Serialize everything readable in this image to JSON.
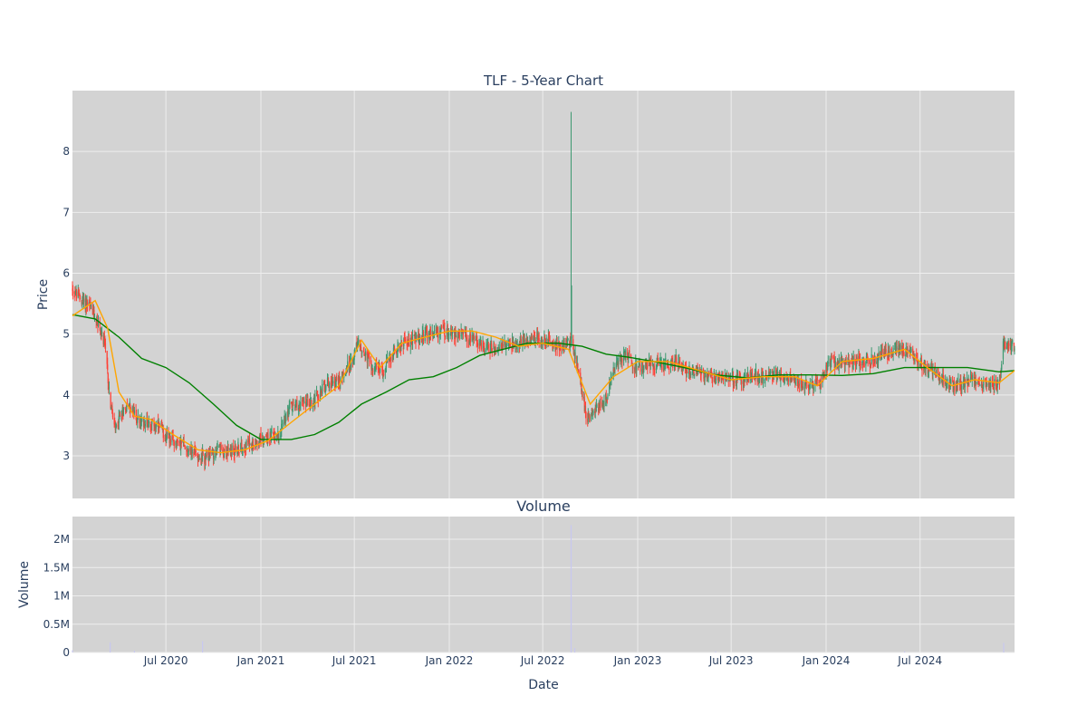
{
  "colors": {
    "panel_bg": "#d3d3d3",
    "grid": "#eeeeee",
    "increasing": "#3d9970",
    "decreasing": "#ff4136",
    "ma_short": "#ffa500",
    "ma_long": "#008000",
    "volume": "#c8c8f0",
    "text": "#2a3f5f"
  },
  "chart_data": {
    "type": "candlestick",
    "title": "TLF - 5-Year Chart",
    "price_panel": {
      "ylabel": "Price",
      "ylim": [
        2.3,
        9.0
      ],
      "yticks": [
        3,
        4,
        5,
        6,
        7,
        8
      ],
      "ytick_labels": [
        "3",
        "4",
        "5",
        "6",
        "7",
        "8"
      ],
      "grid": true
    },
    "volume_panel": {
      "title": "Volume",
      "ylabel": "Volume",
      "ylim": [
        0,
        2400000
      ],
      "yticks": [
        0,
        500000,
        1000000,
        1500000,
        2000000
      ],
      "ytick_labels": [
        "0",
        "0.5M",
        "1M",
        "1.5M",
        "2M"
      ],
      "grid": true
    },
    "xlabel": "Date",
    "x_range": [
      "2020-01-02",
      "2024-12-31"
    ],
    "xticks": [
      "2020-07-01",
      "2021-01-01",
      "2021-07-01",
      "2022-01-01",
      "2022-07-01",
      "2023-01-01",
      "2023-07-01",
      "2024-01-01",
      "2024-07-01"
    ],
    "xtick_labels": [
      "Jul 2020",
      "Jan 2021",
      "Jul 2021",
      "Jan 2022",
      "Jul 2022",
      "Jan 2023",
      "Jul 2023",
      "Jan 2024",
      "Jul 2024"
    ],
    "close_approx": [
      [
        "2020-01-02",
        5.75
      ],
      [
        "2020-01-20",
        5.55
      ],
      [
        "2020-02-05",
        5.45
      ],
      [
        "2020-02-20",
        5.2
      ],
      [
        "2020-03-05",
        4.8
      ],
      [
        "2020-03-15",
        3.9
      ],
      [
        "2020-03-25",
        3.4
      ],
      [
        "2020-04-05",
        3.7
      ],
      [
        "2020-04-20",
        3.85
      ],
      [
        "2020-05-10",
        3.55
      ],
      [
        "2020-06-01",
        3.55
      ],
      [
        "2020-06-20",
        3.45
      ],
      [
        "2020-07-10",
        3.25
      ],
      [
        "2020-08-01",
        3.2
      ],
      [
        "2020-08-25",
        3.05
      ],
      [
        "2020-09-15",
        2.95
      ],
      [
        "2020-10-10",
        3.1
      ],
      [
        "2020-11-01",
        3.05
      ],
      [
        "2020-11-25",
        3.15
      ],
      [
        "2020-12-20",
        3.25
      ],
      [
        "2021-01-10",
        3.3
      ],
      [
        "2021-02-05",
        3.35
      ],
      [
        "2021-02-25",
        3.8
      ],
      [
        "2021-03-20",
        3.85
      ],
      [
        "2021-04-15",
        3.9
      ],
      [
        "2021-05-10",
        4.2
      ],
      [
        "2021-06-05",
        4.25
      ],
      [
        "2021-06-25",
        4.55
      ],
      [
        "2021-07-10",
        4.85
      ],
      [
        "2021-08-01",
        4.5
      ],
      [
        "2021-08-25",
        4.4
      ],
      [
        "2021-09-15",
        4.7
      ],
      [
        "2021-10-10",
        4.9
      ],
      [
        "2021-11-05",
        4.95
      ],
      [
        "2021-12-01",
        5.0
      ],
      [
        "2021-12-25",
        5.05
      ],
      [
        "2022-01-20",
        5.0
      ],
      [
        "2022-02-15",
        4.9
      ],
      [
        "2022-03-10",
        4.8
      ],
      [
        "2022-04-05",
        4.75
      ],
      [
        "2022-05-01",
        4.85
      ],
      [
        "2022-05-25",
        4.9
      ],
      [
        "2022-06-20",
        4.95
      ],
      [
        "2022-07-15",
        4.85
      ],
      [
        "2022-08-10",
        4.8
      ],
      [
        "2022-08-25",
        4.9
      ],
      [
        "2022-09-10",
        4.3
      ],
      [
        "2022-09-25",
        3.6
      ],
      [
        "2022-10-15",
        3.8
      ],
      [
        "2022-11-01",
        3.95
      ],
      [
        "2022-11-20",
        4.5
      ],
      [
        "2022-12-10",
        4.7
      ],
      [
        "2022-12-31",
        4.4
      ],
      [
        "2023-01-25",
        4.5
      ],
      [
        "2023-02-20",
        4.5
      ],
      [
        "2023-03-15",
        4.55
      ],
      [
        "2023-04-10",
        4.4
      ],
      [
        "2023-05-05",
        4.35
      ],
      [
        "2023-06-01",
        4.3
      ],
      [
        "2023-06-25",
        4.25
      ],
      [
        "2023-07-20",
        4.25
      ],
      [
        "2023-08-15",
        4.3
      ],
      [
        "2023-09-10",
        4.3
      ],
      [
        "2023-10-05",
        4.3
      ],
      [
        "2023-11-01",
        4.25
      ],
      [
        "2023-11-25",
        4.15
      ],
      [
        "2023-12-20",
        4.2
      ],
      [
        "2024-01-10",
        4.55
      ],
      [
        "2024-02-05",
        4.5
      ],
      [
        "2024-03-01",
        4.55
      ],
      [
        "2024-03-25",
        4.55
      ],
      [
        "2024-04-20",
        4.65
      ],
      [
        "2024-05-15",
        4.75
      ],
      [
        "2024-06-10",
        4.7
      ],
      [
        "2024-07-01",
        4.5
      ],
      [
        "2024-07-25",
        4.4
      ],
      [
        "2024-08-20",
        4.2
      ],
      [
        "2024-09-15",
        4.15
      ],
      [
        "2024-10-10",
        4.25
      ],
      [
        "2024-11-05",
        4.2
      ],
      [
        "2024-12-01",
        4.15
      ],
      [
        "2024-12-10",
        4.85
      ],
      [
        "2024-12-31",
        4.8
      ]
    ],
    "notable_highs": [
      [
        "2022-08-25",
        8.65
      ],
      [
        "2022-08-26",
        5.8
      ]
    ],
    "ma_short": [
      [
        "2020-01-02",
        5.3
      ],
      [
        "2020-02-15",
        5.55
      ],
      [
        "2020-03-10",
        5.1
      ],
      [
        "2020-04-01",
        4.05
      ],
      [
        "2020-05-01",
        3.65
      ],
      [
        "2020-06-01",
        3.6
      ],
      [
        "2020-07-15",
        3.35
      ],
      [
        "2020-09-01",
        3.1
      ],
      [
        "2020-10-15",
        3.05
      ],
      [
        "2020-12-01",
        3.1
      ],
      [
        "2021-01-15",
        3.25
      ],
      [
        "2021-03-01",
        3.55
      ],
      [
        "2021-04-15",
        3.85
      ],
      [
        "2021-06-01",
        4.15
      ],
      [
        "2021-07-15",
        4.9
      ],
      [
        "2021-08-20",
        4.45
      ],
      [
        "2021-10-01",
        4.85
      ],
      [
        "2021-11-15",
        4.95
      ],
      [
        "2022-01-01",
        5.05
      ],
      [
        "2022-02-15",
        5.05
      ],
      [
        "2022-04-01",
        4.95
      ],
      [
        "2022-05-15",
        4.8
      ],
      [
        "2022-07-01",
        4.85
      ],
      [
        "2022-08-20",
        4.75
      ],
      [
        "2022-10-01",
        3.85
      ],
      [
        "2022-11-15",
        4.3
      ],
      [
        "2023-01-01",
        4.55
      ],
      [
        "2023-03-01",
        4.55
      ],
      [
        "2023-05-01",
        4.4
      ],
      [
        "2023-07-01",
        4.25
      ],
      [
        "2023-09-01",
        4.3
      ],
      [
        "2023-11-01",
        4.3
      ],
      [
        "2023-12-15",
        4.15
      ],
      [
        "2024-02-01",
        4.55
      ],
      [
        "2024-04-01",
        4.6
      ],
      [
        "2024-06-01",
        4.75
      ],
      [
        "2024-07-15",
        4.45
      ],
      [
        "2024-09-01",
        4.15
      ],
      [
        "2024-10-15",
        4.25
      ],
      [
        "2024-12-01",
        4.2
      ],
      [
        "2024-12-31",
        4.4
      ]
    ],
    "ma_long": [
      [
        "2020-01-02",
        5.32
      ],
      [
        "2020-02-15",
        5.25
      ],
      [
        "2020-04-01",
        4.95
      ],
      [
        "2020-05-15",
        4.6
      ],
      [
        "2020-07-01",
        4.45
      ],
      [
        "2020-08-15",
        4.2
      ],
      [
        "2020-10-01",
        3.85
      ],
      [
        "2020-11-15",
        3.5
      ],
      [
        "2021-01-01",
        3.27
      ],
      [
        "2021-03-01",
        3.27
      ],
      [
        "2021-04-15",
        3.35
      ],
      [
        "2021-06-01",
        3.55
      ],
      [
        "2021-07-15",
        3.85
      ],
      [
        "2021-09-01",
        4.05
      ],
      [
        "2021-10-15",
        4.25
      ],
      [
        "2021-12-01",
        4.3
      ],
      [
        "2022-01-15",
        4.45
      ],
      [
        "2022-03-01",
        4.65
      ],
      [
        "2022-04-15",
        4.75
      ],
      [
        "2022-06-01",
        4.85
      ],
      [
        "2022-08-01",
        4.85
      ],
      [
        "2022-09-15",
        4.8
      ],
      [
        "2022-11-01",
        4.67
      ],
      [
        "2022-12-15",
        4.62
      ],
      [
        "2023-02-01",
        4.55
      ],
      [
        "2023-04-01",
        4.45
      ],
      [
        "2023-06-01",
        4.33
      ],
      [
        "2023-08-01",
        4.28
      ],
      [
        "2023-10-01",
        4.33
      ],
      [
        "2023-12-01",
        4.33
      ],
      [
        "2024-02-01",
        4.32
      ],
      [
        "2024-04-01",
        4.35
      ],
      [
        "2024-06-01",
        4.45
      ],
      [
        "2024-08-01",
        4.45
      ],
      [
        "2024-10-01",
        4.45
      ],
      [
        "2024-12-01",
        4.38
      ],
      [
        "2024-12-31",
        4.4
      ]
    ],
    "volume_approx": [
      [
        "2020-01-02",
        40000
      ],
      [
        "2020-03-15",
        180000
      ],
      [
        "2020-05-01",
        30000
      ],
      [
        "2020-09-10",
        200000
      ],
      [
        "2021-06-01",
        25000
      ],
      [
        "2022-02-15",
        30000
      ],
      [
        "2022-08-25",
        2250000
      ],
      [
        "2022-09-01",
        80000
      ],
      [
        "2023-06-01",
        20000
      ],
      [
        "2024-06-01",
        20000
      ],
      [
        "2024-12-10",
        170000
      ]
    ]
  }
}
